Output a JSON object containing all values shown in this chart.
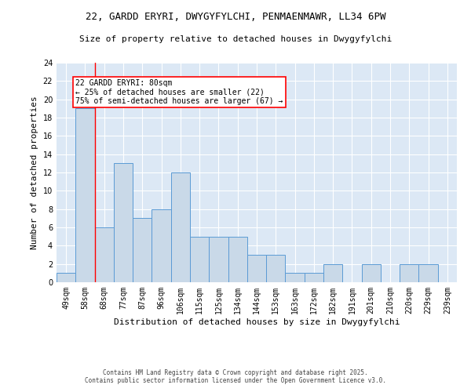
{
  "title_line1": "22, GARDD ERYRI, DWYGYFYLCHI, PENMAENMAWR, LL34 6PW",
  "title_line2": "Size of property relative to detached houses in Dwygyfylchi",
  "xlabel": "Distribution of detached houses by size in Dwygyfylchi",
  "ylabel": "Number of detached properties",
  "categories": [
    "49sqm",
    "58sqm",
    "68sqm",
    "77sqm",
    "87sqm",
    "96sqm",
    "106sqm",
    "115sqm",
    "125sqm",
    "134sqm",
    "144sqm",
    "153sqm",
    "163sqm",
    "172sqm",
    "182sqm",
    "191sqm",
    "201sqm",
    "210sqm",
    "220sqm",
    "229sqm",
    "239sqm"
  ],
  "values": [
    1,
    19,
    6,
    13,
    7,
    8,
    12,
    5,
    5,
    5,
    3,
    3,
    1,
    1,
    2,
    0,
    2,
    0,
    2,
    2,
    0
  ],
  "bar_color": "#c9d9e8",
  "bar_edge_color": "#5b9bd5",
  "background_color": "#dce8f5",
  "red_line_index": 2,
  "ylim": [
    0,
    24
  ],
  "yticks": [
    0,
    2,
    4,
    6,
    8,
    10,
    12,
    14,
    16,
    18,
    20,
    22,
    24
  ],
  "annotation_title": "22 GARDD ERYRI: 80sqm",
  "annotation_line1": "← 25% of detached houses are smaller (22)",
  "annotation_line2": "75% of semi-detached houses are larger (67) →",
  "footer_line1": "Contains HM Land Registry data © Crown copyright and database right 2025.",
  "footer_line2": "Contains public sector information licensed under the Open Government Licence v3.0.",
  "title_fontsize": 9,
  "subtitle_fontsize": 8,
  "xlabel_fontsize": 8,
  "ylabel_fontsize": 8,
  "tick_fontsize": 7,
  "annotation_fontsize": 7,
  "footer_fontsize": 5.5
}
